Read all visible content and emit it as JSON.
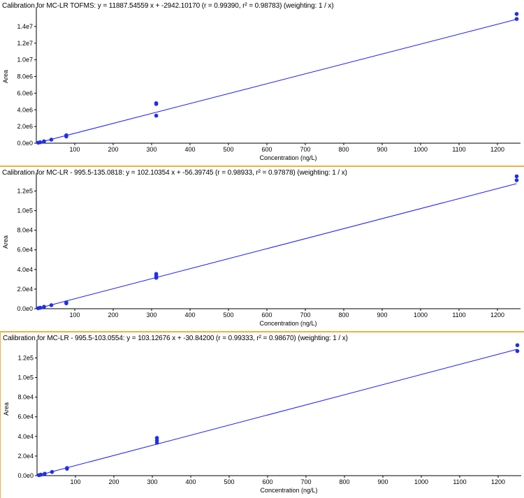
{
  "colors": {
    "series": "#1a1aff",
    "point": "#1f2fe8",
    "divider": "#f0b040"
  },
  "chart_data": [
    {
      "type": "scatter",
      "title": "Calibration for MC-LR TOFMS: y = 11887.54559 x + -2942.10170 (r = 0.99390, r² = 0.98783)  (weighting: 1 / x)",
      "xlabel": "Concentration (ng/L)",
      "ylabel": "Area",
      "xlim": [
        0,
        1260
      ],
      "ylim": [
        0,
        16000000
      ],
      "x_ticks": [
        100,
        200,
        300,
        400,
        500,
        600,
        700,
        800,
        900,
        1000,
        1100,
        1200
      ],
      "x_tick_labels": [
        "100",
        "200",
        "300",
        "400",
        "500",
        "600",
        "700",
        "800",
        "900",
        "1000",
        "1100",
        "1200"
      ],
      "y_ticks": [
        0,
        2000000,
        4000000,
        6000000,
        8000000,
        10000000,
        12000000,
        14000000
      ],
      "y_tick_labels": [
        "0.0e0",
        "2.0e6",
        "4.0e6",
        "6.0e6",
        "8.0e6",
        "1.0e7",
        "1.2e7",
        "1.4e7"
      ],
      "grid": false,
      "fit": {
        "slope": 11887.54559,
        "intercept": -2942.1017
      },
      "points": [
        {
          "x": 5,
          "y": 60000
        },
        {
          "x": 10,
          "y": 110000
        },
        {
          "x": 20,
          "y": 230000
        },
        {
          "x": 39,
          "y": 420000
        },
        {
          "x": 78,
          "y": 800000
        },
        {
          "x": 78,
          "y": 950000
        },
        {
          "x": 312,
          "y": 3300000
        },
        {
          "x": 312,
          "y": 4700000
        },
        {
          "x": 312,
          "y": 4800000
        },
        {
          "x": 1250,
          "y": 14900000
        },
        {
          "x": 1250,
          "y": 15500000
        }
      ]
    },
    {
      "type": "scatter",
      "title": "Calibration for MC-LR - 995.5-135.0818: y = 102.10354 x + -56.39745 (r = 0.98933, r² = 0.97878)  (weighting: 1 / x)",
      "xlabel": "Concentration (ng/L)",
      "ylabel": "Area",
      "xlim": [
        0,
        1260
      ],
      "ylim": [
        0,
        136000
      ],
      "x_ticks": [
        100,
        200,
        300,
        400,
        500,
        600,
        700,
        800,
        900,
        1000,
        1100,
        1200
      ],
      "x_tick_labels": [
        "100",
        "200",
        "300",
        "400",
        "500",
        "600",
        "700",
        "800",
        "900",
        "1000",
        "1100",
        "1200"
      ],
      "y_ticks": [
        0,
        20000,
        40000,
        60000,
        80000,
        100000,
        120000
      ],
      "y_tick_labels": [
        "0.0e0",
        "2.0e4",
        "4.0e4",
        "6.0e4",
        "8.0e4",
        "1.0e5",
        "1.2e5"
      ],
      "grid": false,
      "fit": {
        "slope": 102.10354,
        "intercept": -56.39745
      },
      "points": [
        {
          "x": 5,
          "y": 500
        },
        {
          "x": 10,
          "y": 1000
        },
        {
          "x": 20,
          "y": 2000
        },
        {
          "x": 39,
          "y": 3600
        },
        {
          "x": 78,
          "y": 5500
        },
        {
          "x": 78,
          "y": 6500
        },
        {
          "x": 312,
          "y": 31500
        },
        {
          "x": 312,
          "y": 33500
        },
        {
          "x": 312,
          "y": 35500
        },
        {
          "x": 1250,
          "y": 131000
        },
        {
          "x": 1250,
          "y": 135000
        }
      ]
    },
    {
      "type": "scatter",
      "title": "Calibration for MC-LR - 995.5-103.0554: y = 103.12676 x + -30.84200 (r = 0.99333, r² = 0.98670)  (weighting: 1 / x)",
      "xlabel": "Concentration (ng/L)",
      "ylabel": "Area",
      "xlim": [
        0,
        1260
      ],
      "ylim": [
        0,
        136000
      ],
      "x_ticks": [
        100,
        200,
        300,
        400,
        500,
        600,
        700,
        800,
        900,
        1000,
        1100,
        1200
      ],
      "x_tick_labels": [
        "100",
        "200",
        "300",
        "400",
        "500",
        "600",
        "700",
        "800",
        "900",
        "1000",
        "1100",
        "1200"
      ],
      "y_ticks": [
        0,
        20000,
        40000,
        60000,
        80000,
        100000,
        120000
      ],
      "y_tick_labels": [
        "0.0e0",
        "2.0e4",
        "4.0e4",
        "6.0e4",
        "8.0e4",
        "1.0e5",
        "1.2e5"
      ],
      "grid": false,
      "fit": {
        "slope": 103.12676,
        "intercept": -30.842
      },
      "points": [
        {
          "x": 5,
          "y": 500
        },
        {
          "x": 10,
          "y": 1000
        },
        {
          "x": 20,
          "y": 2000
        },
        {
          "x": 39,
          "y": 3800
        },
        {
          "x": 78,
          "y": 7000
        },
        {
          "x": 78,
          "y": 7800
        },
        {
          "x": 312,
          "y": 33500
        },
        {
          "x": 312,
          "y": 36000
        },
        {
          "x": 312,
          "y": 38500
        },
        {
          "x": 1250,
          "y": 127000
        },
        {
          "x": 1250,
          "y": 133000
        }
      ]
    }
  ]
}
